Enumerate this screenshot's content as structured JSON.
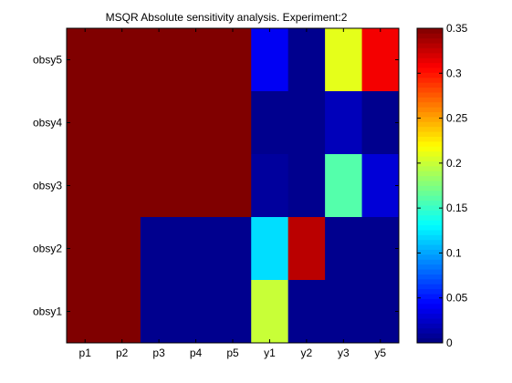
{
  "chart_data": {
    "type": "heatmap",
    "title": "MSQR Absolute sensitivity analysis. Experiment:2",
    "xlabel": "",
    "ylabel": "",
    "x_categories": [
      "p1",
      "p2",
      "p3",
      "p4",
      "p5",
      "y1",
      "y2",
      "y3",
      "y5"
    ],
    "y_categories": [
      "obsy5",
      "obsy4",
      "obsy3",
      "obsy2",
      "obsy1"
    ],
    "values": [
      [
        0.35,
        0.35,
        0.35,
        0.35,
        0.35,
        0.04,
        0.005,
        0.21,
        0.31
      ],
      [
        0.35,
        0.35,
        0.35,
        0.35,
        0.35,
        0.005,
        0.005,
        0.02,
        0.005
      ],
      [
        0.35,
        0.35,
        0.35,
        0.35,
        0.35,
        0.01,
        0.005,
        0.16,
        0.03
      ],
      [
        0.35,
        0.35,
        0.005,
        0.005,
        0.005,
        0.12,
        0.33,
        0.005,
        0.005
      ],
      [
        0.35,
        0.35,
        0.005,
        0.005,
        0.005,
        0.2,
        0.005,
        0.005,
        0.005
      ]
    ],
    "colorbar": {
      "colormap": "jet",
      "range": [
        0,
        0.35
      ],
      "ticks": [
        0,
        0.05,
        0.1,
        0.15,
        0.2,
        0.25,
        0.3,
        0.35
      ],
      "tick_labels": [
        "0",
        "0.05",
        "0.1",
        "0.15",
        "0.2",
        "0.25",
        "0.3",
        "0.35"
      ]
    },
    "grid": false
  }
}
